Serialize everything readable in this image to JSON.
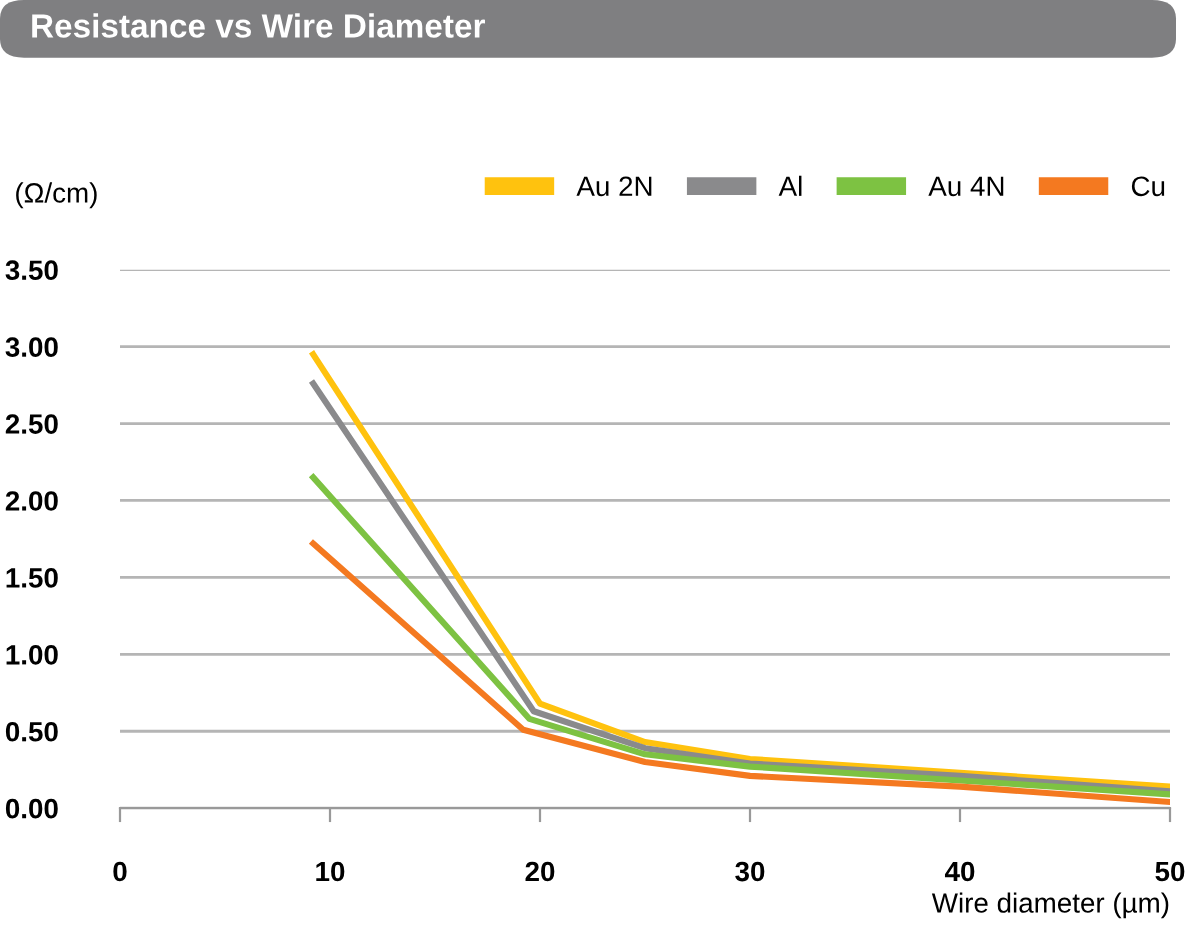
{
  "chart_data": {
    "type": "line",
    "title": "Resistance vs Wire Diameter",
    "xlabel": "Wire diameter (µm)",
    "ylabel": "(Ω/cm)",
    "series": [
      {
        "name": "Au 2N",
        "color": "#ffc20e",
        "x": [
          9.2,
          20,
          25,
          30,
          40,
          50
        ],
        "values": [
          2.95,
          0.68,
          0.43,
          0.32,
          0.23,
          0.14
        ]
      },
      {
        "name": "Al",
        "color": "#8a8a8c",
        "x": [
          9.2,
          19.7,
          25,
          30,
          40,
          50
        ],
        "values": [
          2.76,
          0.63,
          0.39,
          0.29,
          0.21,
          0.11
        ]
      },
      {
        "name": "Au 4N",
        "color": "#7dc242",
        "x": [
          9.2,
          19.5,
          25,
          30,
          40,
          50
        ],
        "values": [
          2.15,
          0.58,
          0.35,
          0.27,
          0.18,
          0.09
        ]
      },
      {
        "name": "Cu",
        "color": "#f47920",
        "x": [
          9.2,
          19.2,
          25,
          30,
          40,
          50
        ],
        "values": [
          1.72,
          0.51,
          0.3,
          0.21,
          0.14,
          0.04
        ]
      }
    ],
    "xlim": [
      0,
      50
    ],
    "xticks": [
      0,
      10,
      20,
      30,
      40,
      50
    ],
    "ylim": [
      0,
      3.5
    ],
    "yticks": [
      {
        "value": 0,
        "label": "0.00"
      },
      {
        "value": 0.5,
        "label": "0.50"
      },
      {
        "value": 1,
        "label": "1.00"
      },
      {
        "value": 1.5,
        "label": "1.50"
      },
      {
        "value": 2,
        "label": "2.00"
      },
      {
        "value": 2.5,
        "label": "2.50"
      },
      {
        "value": 3,
        "label": "3.00"
      },
      {
        "value": 3.5,
        "label": "3.50"
      }
    ],
    "grid": "y",
    "legend": "top right",
    "marker": "none",
    "line_style": "solid"
  }
}
